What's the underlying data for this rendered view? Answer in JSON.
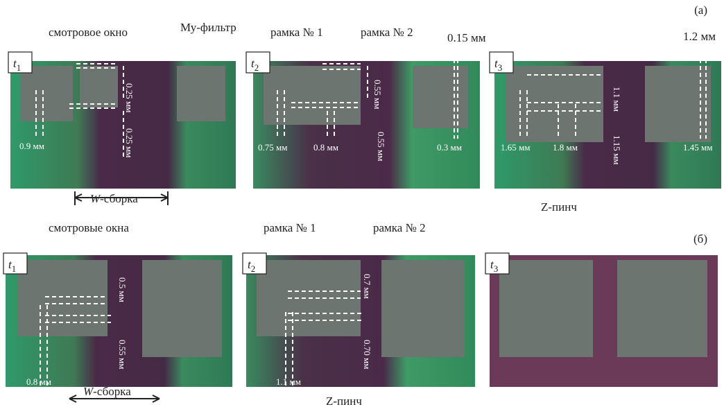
{
  "panel_a": {
    "label": "(а)",
    "callouts": [
      "смотровое окно",
      "Му-фильтр",
      "рамка № 1",
      "рамка № 2",
      "0.15 мм",
      "1.2 мм"
    ],
    "w_assembly": {
      "italic": "W",
      "rest": "-сборка"
    },
    "z_pinch": "Z-пинч",
    "frames": [
      {
        "time": {
          "symbol": "t",
          "subscript": "1"
        },
        "measurements": [
          "0.25 мм",
          "0.25 мм",
          "0.9 мм"
        ]
      },
      {
        "time": {
          "symbol": "t",
          "subscript": "2"
        },
        "measurements": [
          "0.55 мм",
          "0.55 мм",
          "0.75 мм",
          "0.8 мм",
          "0.3 мм"
        ]
      },
      {
        "time": {
          "symbol": "t",
          "subscript": "3"
        },
        "measurements": [
          "1.1 мм",
          "1.15 мм",
          "1.65 мм",
          "1.8 мм",
          "1.45 мм"
        ]
      }
    ]
  },
  "panel_b": {
    "label": "(б)",
    "callouts": [
      "смотровые окна",
      "рамка № 1",
      "рамка № 2"
    ],
    "w_assembly": {
      "italic": "W",
      "rest": "-сборка"
    },
    "z_pinch": "Z-пинч",
    "frames": [
      {
        "time": {
          "symbol": "t",
          "subscript": "1"
        },
        "measurements": [
          "0.5 мм",
          "0.55 мм",
          "0.8 мм"
        ]
      },
      {
        "time": {
          "symbol": "t",
          "subscript": "2"
        },
        "measurements": [
          "0.7 мм",
          "0.70 мм",
          "1.1 мм"
        ]
      },
      {
        "time": {
          "symbol": "t",
          "subscript": "3"
        },
        "measurements": []
      }
    ]
  }
}
